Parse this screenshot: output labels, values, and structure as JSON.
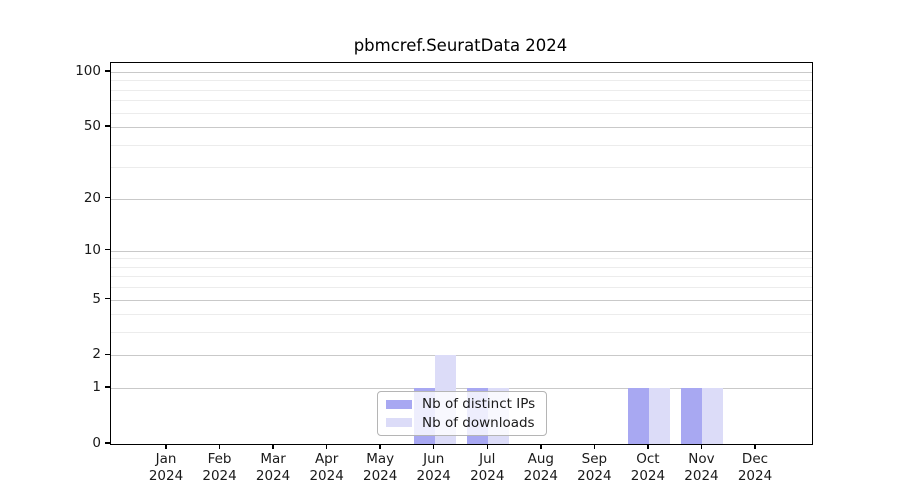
{
  "chart_data": {
    "type": "bar",
    "title": "pbmcref.SeuratData 2024",
    "categories": [
      "Jan 2024",
      "Feb 2024",
      "Mar 2024",
      "Apr 2024",
      "May 2024",
      "Jun 2024",
      "Jul 2024",
      "Aug 2024",
      "Sep 2024",
      "Oct 2024",
      "Nov 2024",
      "Dec 2024"
    ],
    "series": [
      {
        "name": "Nb of distinct IPs",
        "color": "#a8a8f2",
        "values": [
          0,
          0,
          0,
          0,
          0,
          1,
          1,
          0,
          0,
          1,
          1,
          0
        ]
      },
      {
        "name": "Nb of downloads",
        "color": "#dcdcf8",
        "values": [
          0,
          0,
          0,
          0,
          0,
          2,
          1,
          0,
          0,
          1,
          1,
          0
        ]
      }
    ],
    "xlabel": "",
    "ylabel": "",
    "y_axis": {
      "scale": "log10(1+x)",
      "ticks": [
        0,
        1,
        2,
        5,
        10,
        20,
        50,
        100
      ],
      "minor_gridlines": [
        3,
        4,
        6,
        7,
        8,
        9,
        30,
        40,
        60,
        70,
        80,
        90
      ],
      "range": [
        0,
        112
      ]
    },
    "grid": true,
    "legend_position": "bottom-center"
  },
  "style": {
    "background": "#ffffff",
    "axis_color": "#000000",
    "text_color": "#1a1a1a",
    "grid_major_color": "#c9c9c9",
    "grid_minor_color": "#ececec",
    "legend_border_color": "#b5b5b5"
  }
}
